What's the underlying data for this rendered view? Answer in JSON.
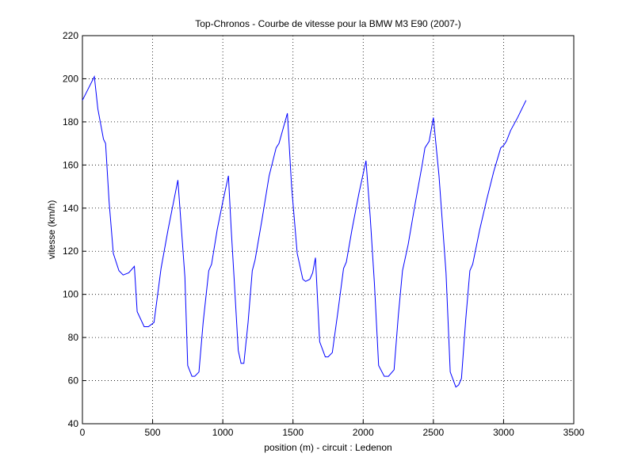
{
  "chart_data": {
    "type": "line",
    "title": "Top-Chronos - Courbe de vitesse pour la BMW M3 E90 (2007-)",
    "x_label": "position (m) - circuit : Ledenon",
    "y_label": "vitesse (km/h)",
    "x": [
      0,
      85,
      110,
      150,
      165,
      190,
      220,
      260,
      290,
      330,
      370,
      390,
      440,
      470,
      510,
      560,
      610,
      680,
      730,
      750,
      780,
      800,
      830,
      860,
      900,
      920,
      960,
      1000,
      1040,
      1060,
      1080,
      1110,
      1130,
      1150,
      1180,
      1210,
      1230,
      1280,
      1330,
      1380,
      1400,
      1460,
      1490,
      1530,
      1570,
      1590,
      1620,
      1640,
      1660,
      1690,
      1730,
      1750,
      1780,
      1820,
      1860,
      1880,
      1920,
      1970,
      2020,
      2050,
      2080,
      2110,
      2150,
      2180,
      2220,
      2250,
      2280,
      2320,
      2370,
      2420,
      2440,
      2470,
      2500,
      2540,
      2590,
      2620,
      2660,
      2680,
      2700,
      2730,
      2760,
      2780,
      2830,
      2880,
      2930,
      2980,
      3000,
      3020,
      3050,
      3100,
      3160
    ],
    "series": [
      {
        "name": "vitesse",
        "color": "#0000ff",
        "values": [
          190,
          201,
          186,
          172,
          170,
          143,
          119,
          111,
          109,
          110,
          113,
          92,
          85,
          85,
          87,
          112,
          130,
          153,
          108,
          67,
          62,
          62,
          64,
          87,
          111,
          114,
          130,
          143,
          155,
          130,
          108,
          74,
          68,
          68,
          87,
          111,
          116,
          135,
          155,
          168,
          170,
          184,
          150,
          119,
          107,
          106,
          107,
          110,
          117,
          78,
          71,
          71,
          73,
          92,
          112,
          115,
          130,
          147,
          162,
          136,
          105,
          67,
          62,
          62,
          65,
          90,
          111,
          123,
          142,
          160,
          168,
          171,
          182,
          155,
          110,
          64,
          57,
          58,
          61,
          88,
          111,
          114,
          130,
          144,
          157,
          168,
          169,
          171,
          176,
          182,
          190
        ]
      }
    ],
    "xlim": [
      0,
      3500
    ],
    "xticks": [
      0,
      500,
      1000,
      1500,
      2000,
      2500,
      3000,
      3500
    ],
    "ylim": [
      40,
      220
    ],
    "yticks": [
      40,
      60,
      80,
      100,
      120,
      140,
      160,
      180,
      200,
      220
    ],
    "grid": true
  }
}
